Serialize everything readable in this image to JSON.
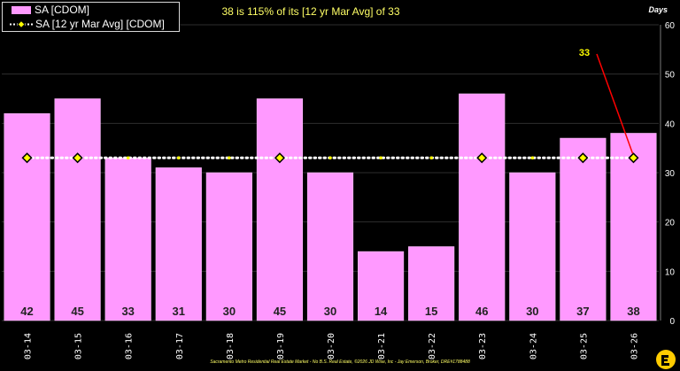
{
  "headline": "38 is 115% of its [12 yr Mar Avg] of 33",
  "unit_label": "Days",
  "footer": "Sacramento Metro Residential Real Estate Market - No B.S. Real Estate, ©2026 JD Wise, Inc - Jay Emerson, Broker, DRE#1788488",
  "legend": {
    "bar_label": "SA [CDOM]",
    "line_label": "SA [12 yr Mar Avg] [CDOM]"
  },
  "colors": {
    "bar": "#ff99ff",
    "avg_line": "#ffffff",
    "avg_marker": "#ffff00",
    "callout": "#ff0000",
    "callout_text": "#ffff00",
    "grid": "#2e2e2e"
  },
  "callout_value": "33",
  "chart_data": {
    "type": "bar",
    "categories": [
      "03-14",
      "03-15",
      "03-16",
      "03-17",
      "03-18",
      "03-19",
      "03-20",
      "03-21",
      "03-22",
      "03-23",
      "03-24",
      "03-25",
      "03-26"
    ],
    "series": [
      {
        "name": "SA [CDOM]",
        "type": "bar",
        "values": [
          42,
          45,
          33,
          31,
          30,
          45,
          30,
          14,
          15,
          46,
          30,
          37,
          38
        ]
      },
      {
        "name": "SA [12 yr Mar Avg] [CDOM]",
        "type": "line",
        "style": "dotted",
        "values": [
          33,
          33,
          33,
          33,
          33,
          33,
          33,
          33,
          33,
          33,
          33,
          33,
          33
        ],
        "diamond_marker_categories": [
          "03-14",
          "03-15",
          "03-19",
          "03-23",
          "03-25",
          "03-26"
        ]
      }
    ],
    "data_labels": [
      "42",
      "45",
      "33",
      "31",
      "30",
      "45",
      "30",
      "14",
      "15",
      "46",
      "30",
      "37",
      "38"
    ],
    "yaxis_ticks": [
      "0",
      "10",
      "20",
      "30",
      "40",
      "50",
      "60"
    ],
    "ylim": [
      0,
      60
    ],
    "y_axis_position": "right",
    "grid": true,
    "legend_position": "top-left"
  }
}
